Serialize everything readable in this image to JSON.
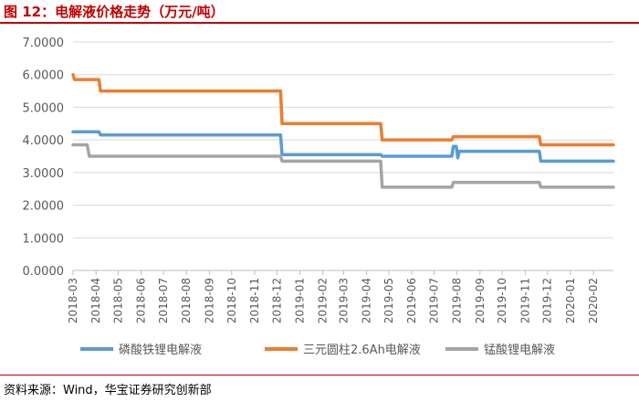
{
  "figure": {
    "title": "图 12：电解液价格走势（万元/吨）",
    "source": "资料来源：Wind，华宝证券研究创新部"
  },
  "colors": {
    "title": "#c00000",
    "grid": "#d9d9d9",
    "axis": "#bfbfbf",
    "text": "#595959"
  },
  "chart_data": {
    "type": "line",
    "title": "",
    "xlabel": "",
    "ylabel": "",
    "ylim": [
      0,
      7
    ],
    "yticks": [
      "0.0000",
      "1.0000",
      "2.0000",
      "3.0000",
      "4.0000",
      "5.0000",
      "6.0000",
      "7.0000"
    ],
    "grid": "horizontal",
    "legend_position": "bottom",
    "x_start": "2018-03",
    "x_end": "2020-02-28",
    "categories": [
      "2018-03",
      "2018-04",
      "2018-05",
      "2018-06",
      "2018-07",
      "2018-08",
      "2018-09",
      "2018-10",
      "2018-11",
      "2018-12",
      "2019-01",
      "2019-02",
      "2019-03",
      "2019-04",
      "2019-05",
      "2019-06",
      "2019-07",
      "2019-08",
      "2019-09",
      "2019-10",
      "2019-11",
      "2019-12",
      "2020-01",
      "2020-02"
    ],
    "series": [
      {
        "name": "磷酸铁锂电解液",
        "color": "#5b9bd5",
        "points": [
          [
            "2018-03-01",
            4.25
          ],
          [
            "2018-04-05",
            4.25
          ],
          [
            "2018-04-07",
            4.15
          ],
          [
            "2018-12-06",
            4.15
          ],
          [
            "2018-12-08",
            3.55
          ],
          [
            "2019-04-20",
            3.55
          ],
          [
            "2019-04-22",
            3.5
          ],
          [
            "2019-07-25",
            3.5
          ],
          [
            "2019-07-27",
            3.8
          ],
          [
            "2019-07-31",
            3.8
          ],
          [
            "2019-08-02",
            3.45
          ],
          [
            "2019-08-04",
            3.65
          ],
          [
            "2019-11-20",
            3.65
          ],
          [
            "2019-11-22",
            3.35
          ],
          [
            "2020-02-28",
            3.35
          ]
        ]
      },
      {
        "name": "三元圆柱2.6Ah电解液",
        "color": "#ed7d31",
        "points": [
          [
            "2018-03-01",
            6.0
          ],
          [
            "2018-03-03",
            5.85
          ],
          [
            "2018-04-05",
            5.85
          ],
          [
            "2018-04-07",
            5.5
          ],
          [
            "2018-12-06",
            5.5
          ],
          [
            "2018-12-08",
            4.5
          ],
          [
            "2019-04-20",
            4.5
          ],
          [
            "2019-04-22",
            4.0
          ],
          [
            "2019-07-25",
            4.0
          ],
          [
            "2019-07-27",
            4.1
          ],
          [
            "2019-11-20",
            4.1
          ],
          [
            "2019-11-22",
            3.85
          ],
          [
            "2020-02-28",
            3.85
          ]
        ]
      },
      {
        "name": "锰酸锂电解液",
        "color": "#a5a5a5",
        "points": [
          [
            "2018-03-01",
            3.85
          ],
          [
            "2018-03-20",
            3.85
          ],
          [
            "2018-03-23",
            3.5
          ],
          [
            "2018-12-06",
            3.5
          ],
          [
            "2018-12-08",
            3.35
          ],
          [
            "2019-04-20",
            3.35
          ],
          [
            "2019-04-22",
            2.55
          ],
          [
            "2019-07-25",
            2.55
          ],
          [
            "2019-07-27",
            2.7
          ],
          [
            "2019-11-20",
            2.7
          ],
          [
            "2019-11-22",
            2.55
          ],
          [
            "2020-02-28",
            2.55
          ]
        ]
      }
    ]
  }
}
